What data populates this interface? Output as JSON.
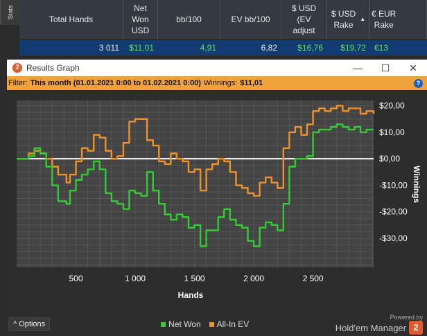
{
  "stats_tab": "Stats",
  "grid": {
    "headers": [
      {
        "label": "Total Hands"
      },
      {
        "label": "Net\nWon\nUSD"
      },
      {
        "label": "bb/100"
      },
      {
        "label": "EV bb/100"
      },
      {
        "label": "$ USD\n(EV\nadjust"
      },
      {
        "label": "$ USD\nRake"
      },
      {
        "label": "€ EUR\nRake"
      }
    ],
    "row": [
      "3 011",
      "$11,01",
      "4,91",
      "6,82",
      "$16,76",
      "$19,72",
      "€13"
    ]
  },
  "window": {
    "title": "Results Graph",
    "app_logo": "2",
    "minimize": "—",
    "maximize": "☐",
    "close": "✕",
    "filter_label": "Filter:",
    "filter_value": "This month (01.01.2021 0:00 to 01.02.2021 0:00)",
    "winnings_label": "Winnings:",
    "winnings_value": "$11,01",
    "help": "?"
  },
  "chart_data": {
    "type": "line",
    "xlabel": "Hands",
    "ylabel": "Winnings",
    "xlim": [
      0,
      3011
    ],
    "ylim": [
      -41,
      22
    ],
    "x_ticks": [
      500,
      1000,
      1500,
      2000,
      2500
    ],
    "x_tick_labels": [
      "500",
      "1 000",
      "1 500",
      "2 000",
      "2 500"
    ],
    "y_ticks": [
      20,
      10,
      0,
      -10,
      -20,
      -30
    ],
    "y_tick_labels": [
      "$20,00",
      "$10,00",
      "$0,00",
      "-$10,00",
      "-$20,00",
      "-$30,00"
    ],
    "series": [
      {
        "name": "Net Won",
        "color": "#33cc33",
        "x": [
          0,
          100,
          150,
          200,
          250,
          300,
          350,
          420,
          450,
          500,
          550,
          600,
          650,
          700,
          750,
          800,
          850,
          900,
          950,
          1000,
          1050,
          1100,
          1150,
          1200,
          1250,
          1300,
          1350,
          1400,
          1450,
          1500,
          1550,
          1600,
          1650,
          1700,
          1750,
          1800,
          1850,
          1900,
          1950,
          2000,
          2050,
          2100,
          2150,
          2200,
          2250,
          2300,
          2350,
          2400,
          2450,
          2500,
          2550,
          2600,
          2650,
          2700,
          2750,
          2800,
          2850,
          2900,
          2950,
          3011
        ],
        "y": [
          0,
          1,
          4,
          2,
          -3,
          -10,
          -16,
          -17,
          -12,
          -8,
          -6,
          -4,
          -1,
          -4,
          -13,
          -16,
          -17,
          -19,
          -12,
          -13,
          -14,
          -5,
          -12,
          -17,
          -21,
          -23,
          -21,
          -22,
          -26,
          -25,
          -33,
          -27,
          -27,
          -22,
          -19,
          -23,
          -25,
          -26,
          -31,
          -33,
          -26,
          -24,
          -25,
          -27,
          -17,
          -3,
          0,
          0,
          1,
          10,
          11,
          11,
          12,
          13,
          12,
          11,
          12,
          10,
          11,
          11
        ]
      },
      {
        "name": "All-In EV",
        "color": "#f0922b",
        "x": [
          0,
          100,
          150,
          200,
          250,
          300,
          350,
          420,
          450,
          500,
          550,
          600,
          650,
          700,
          750,
          800,
          850,
          900,
          950,
          1000,
          1050,
          1100,
          1150,
          1200,
          1250,
          1300,
          1350,
          1400,
          1450,
          1500,
          1550,
          1600,
          1650,
          1700,
          1750,
          1800,
          1850,
          1900,
          1950,
          2000,
          2050,
          2100,
          2150,
          2200,
          2250,
          2300,
          2350,
          2400,
          2450,
          2500,
          2550,
          2600,
          2650,
          2700,
          2750,
          2800,
          2850,
          2900,
          2950,
          3011
        ],
        "y": [
          0,
          2,
          3,
          2,
          0,
          -3,
          -6,
          -9,
          -6,
          -1,
          4,
          3,
          9,
          8,
          3,
          0,
          1,
          6,
          14,
          15,
          15,
          7,
          5,
          -1,
          -2,
          2,
          0,
          -1,
          -5,
          -4,
          -12,
          -4,
          -2,
          0,
          -1,
          -5,
          -10,
          -11,
          -13,
          -14,
          -9,
          -7,
          -9,
          -11,
          4,
          10,
          12,
          9,
          13,
          18,
          19,
          18,
          19,
          20,
          18,
          19,
          19,
          17,
          18,
          17
        ]
      }
    ]
  },
  "bottom": {
    "options_label": "Options",
    "options_arrow": "^",
    "legend": [
      {
        "label": "Net Won",
        "color": "#33cc33"
      },
      {
        "label": "All-In EV",
        "color": "#f0922b"
      }
    ],
    "powered_by": "Powered by",
    "brand_name": "Hold'em Manager",
    "brand_logo": "2"
  }
}
